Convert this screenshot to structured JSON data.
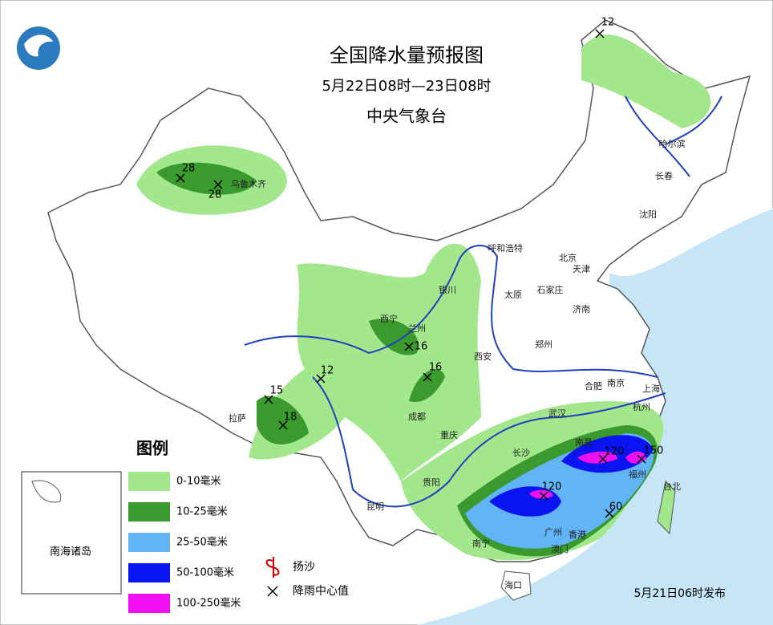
{
  "header": {
    "title": "全国降水量预报图",
    "period": "5月22日08时—23日08时",
    "issuer": "中央气象台"
  },
  "cities": [
    "乌鲁木齐",
    "哈尔滨",
    "长春",
    "沈阳",
    "呼和浩特",
    "北京",
    "天津",
    "石家庄",
    "太原",
    "济南",
    "银川",
    "西宁",
    "兰州",
    "西安",
    "郑州",
    "合肥",
    "南京",
    "上海",
    "杭州",
    "武汉",
    "成都",
    "重庆",
    "拉萨",
    "长沙",
    "南昌",
    "福州",
    "台北",
    "贵阳",
    "昆明",
    "南宁",
    "广州",
    "香港",
    "澳门",
    "海口"
  ],
  "rain_centers": [
    28,
    28,
    12,
    16,
    16,
    12,
    15,
    18,
    120,
    150,
    120,
    60
  ],
  "legend": {
    "title": "图例",
    "items": [
      {
        "label": "0-10毫米",
        "color": "#a3e78c"
      },
      {
        "label": "10-25毫米",
        "color": "#3a9a2e"
      },
      {
        "label": "25-50毫米",
        "color": "#61b4f5"
      },
      {
        "label": "50-100毫米",
        "color": "#0a14f0"
      },
      {
        "label": "100-250毫米",
        "color": "#f00ff0"
      }
    ],
    "symbols": [
      "扬沙",
      "降雨中心值"
    ]
  },
  "inset_label": "南海诸岛",
  "footer": "5月21日06时发布"
}
